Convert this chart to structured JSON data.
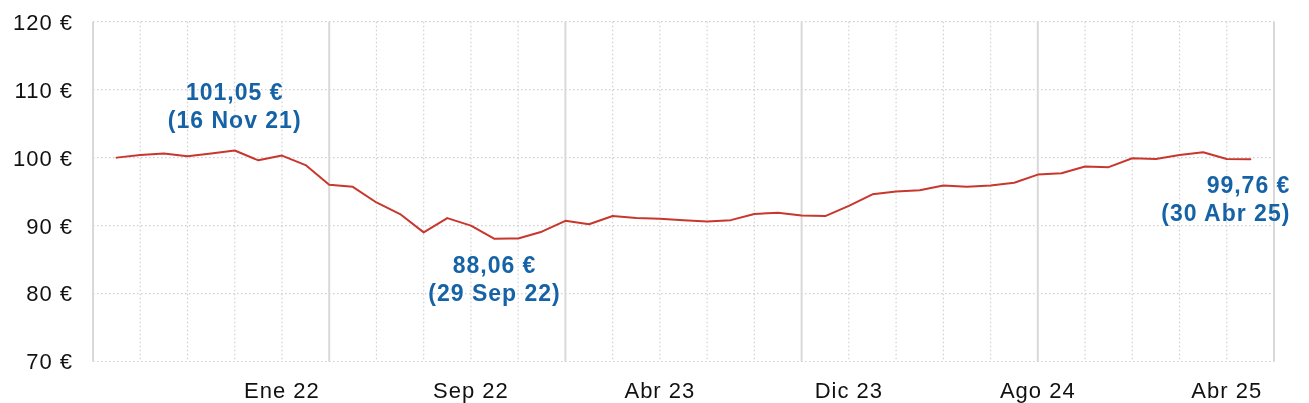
{
  "chart_data": {
    "type": "line",
    "categories": [
      null,
      null,
      null,
      null,
      null,
      null,
      null,
      "Ene 22",
      null,
      null,
      null,
      null,
      null,
      null,
      null,
      "Sep 22",
      null,
      null,
      null,
      null,
      null,
      null,
      null,
      "Abr 23",
      null,
      null,
      null,
      null,
      null,
      null,
      null,
      "Dic 23",
      null,
      null,
      null,
      null,
      null,
      null,
      null,
      "Ago 24",
      null,
      null,
      null,
      null,
      null,
      null,
      null,
      "Abr 25",
      null
    ],
    "series": [
      {
        "color": "#c8372d",
        "values": [
          100.0,
          100.4,
          100.6,
          100.2,
          100.6,
          101.05,
          99.6,
          100.3,
          98.9,
          96.0,
          95.7,
          93.4,
          91.7,
          89.0,
          91.1,
          90.0,
          88.06,
          88.1,
          89.1,
          90.7,
          90.2,
          91.4,
          91.1,
          91.0,
          90.8,
          90.6,
          90.8,
          91.7,
          91.9,
          91.5,
          91.4,
          92.9,
          94.6,
          95.0,
          95.2,
          95.9,
          95.7,
          95.9,
          96.3,
          97.5,
          97.7,
          98.7,
          98.6,
          99.9,
          99.8,
          100.4,
          100.8,
          99.8,
          99.76
        ]
      }
    ],
    "ylim": [
      70,
      120
    ],
    "yticks": [
      {
        "value": 70,
        "label": "70 €"
      },
      {
        "value": 80,
        "label": "80 €"
      },
      {
        "value": 90,
        "label": "90 €"
      },
      {
        "value": 100,
        "label": "100 €"
      },
      {
        "value": 110,
        "label": "110 €"
      },
      {
        "value": 120,
        "label": "120 €"
      }
    ],
    "grid": true,
    "annotations": [
      {
        "text": "101,05 €\n(16 Nov 21)",
        "y": 101.05
      },
      {
        "text": "88,06 €\n(29 Sep 22)",
        "y": 88.06
      },
      {
        "text": "99,76 €\n(30 Abr 25)",
        "y": 99.76
      }
    ]
  }
}
